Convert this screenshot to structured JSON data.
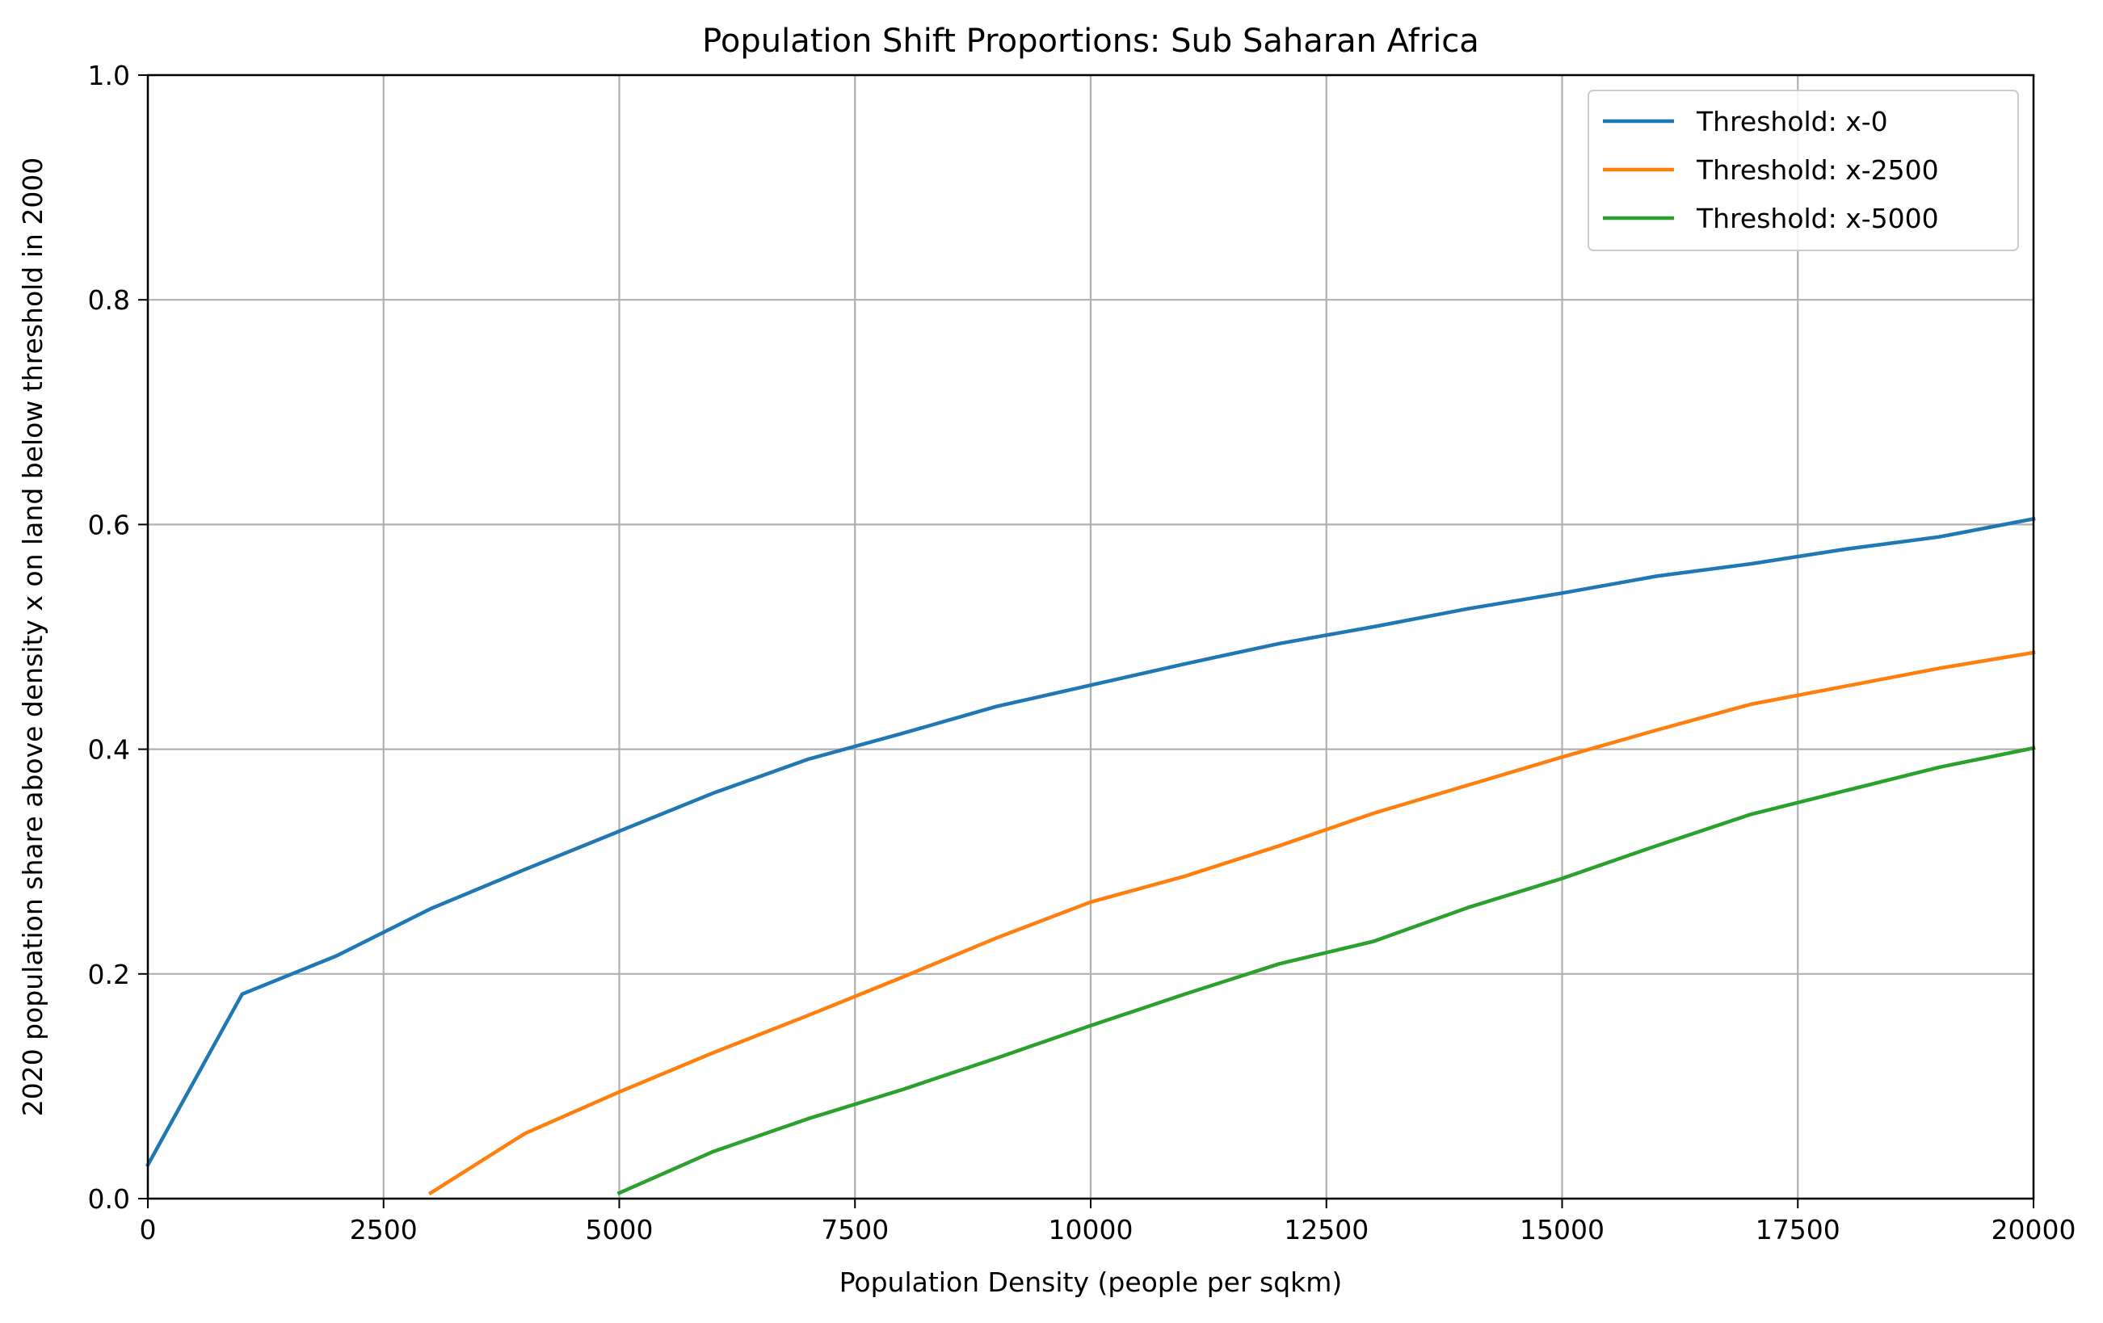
{
  "chart_data": {
    "type": "line",
    "title": "Population Shift Proportions: Sub Saharan Africa",
    "xlabel": "Population Density (people per sqkm)",
    "ylabel": "2020 population share above density x on land below threshold in 2000",
    "xlim": [
      0,
      20000
    ],
    "ylim": [
      0,
      1.0
    ],
    "xticks": [
      0,
      2500,
      5000,
      7500,
      10000,
      12500,
      15000,
      17500,
      20000
    ],
    "yticks": [
      0.0,
      0.2,
      0.4,
      0.6,
      0.8,
      1.0
    ],
    "xtick_labels": [
      "0",
      "2500",
      "5000",
      "7500",
      "10000",
      "12500",
      "15000",
      "17500",
      "20000"
    ],
    "ytick_labels": [
      "0.0",
      "0.2",
      "0.4",
      "0.6",
      "0.8",
      "1.0"
    ],
    "grid": true,
    "legend_position": "top-right",
    "series": [
      {
        "name": "Threshold: x-0",
        "color": "#1f77b4",
        "x": [
          0,
          1000,
          2000,
          3000,
          4000,
          5000,
          6000,
          7000,
          8000,
          9000,
          10000,
          11000,
          12000,
          13000,
          14000,
          15000,
          16000,
          17000,
          18000,
          19000,
          20000
        ],
        "y": [
          0.03,
          0.182,
          0.216,
          0.258,
          0.293,
          0.327,
          0.361,
          0.391,
          0.414,
          0.438,
          0.457,
          0.476,
          0.494,
          0.509,
          0.525,
          0.539,
          0.554,
          0.565,
          0.578,
          0.589,
          0.605
        ]
      },
      {
        "name": "Threshold: x-2500",
        "color": "#ff7f0e",
        "x": [
          3000,
          4000,
          5000,
          6000,
          7000,
          8000,
          9000,
          10000,
          11000,
          12000,
          13000,
          14000,
          15000,
          16000,
          17000,
          18000,
          19000,
          20000
        ],
        "y": [
          0.005,
          0.058,
          0.095,
          0.13,
          0.163,
          0.197,
          0.232,
          0.264,
          0.287,
          0.314,
          0.343,
          0.368,
          0.393,
          0.417,
          0.44,
          0.456,
          0.472,
          0.486
        ]
      },
      {
        "name": "Threshold: x-5000",
        "color": "#2ca02c",
        "x": [
          5000,
          6000,
          7000,
          8000,
          9000,
          10000,
          11000,
          12000,
          13000,
          14000,
          15000,
          16000,
          17000,
          18000,
          19000,
          20000
        ],
        "y": [
          0.005,
          0.042,
          0.071,
          0.097,
          0.125,
          0.154,
          0.182,
          0.209,
          0.229,
          0.259,
          0.285,
          0.314,
          0.342,
          0.363,
          0.384,
          0.401
        ]
      }
    ]
  }
}
